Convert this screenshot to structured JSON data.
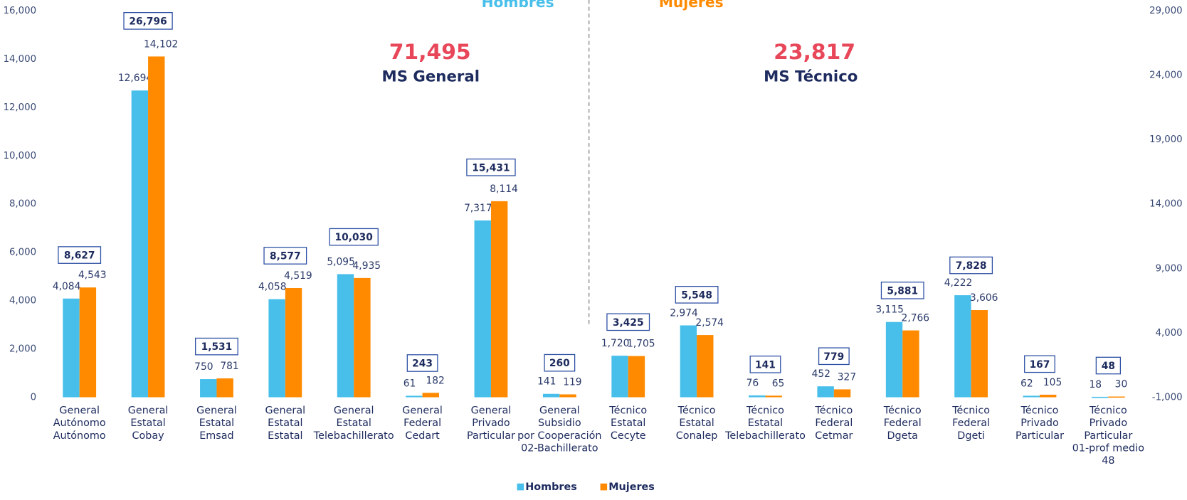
{
  "chart_data": {
    "type": "bar",
    "categories": [
      [
        "General",
        "Autónomo",
        "Autónomo"
      ],
      [
        "General",
        "Estatal",
        "Cobay"
      ],
      [
        "General",
        "Estatal",
        "Emsad"
      ],
      [
        "General",
        "Estatal",
        "Estatal"
      ],
      [
        "General",
        "Estatal",
        "Telebachillerato"
      ],
      [
        "General",
        "Federal",
        "Cedart"
      ],
      [
        "General",
        "Privado",
        "Particular"
      ],
      [
        "General",
        "Subsidio",
        "por Cooperación",
        "02-Bachillerato"
      ],
      [
        "Técnico",
        "Estatal",
        "Cecyte"
      ],
      [
        "Técnico",
        "Estatal",
        "Conalep"
      ],
      [
        "Técnico",
        "Estatal",
        "Telebachillerato"
      ],
      [
        "Técnico",
        "Federal",
        "Cetmar"
      ],
      [
        "Técnico",
        "Federal",
        "Dgeta"
      ],
      [
        "Técnico",
        "Federal",
        "Dgeti"
      ],
      [
        "Técnico",
        "Privado",
        "Particular"
      ],
      [
        "Técnico",
        "Privado",
        "Particular",
        "01-prof medio",
        "48"
      ]
    ],
    "series": [
      {
        "name": "Hombres",
        "color": "#47bfea",
        "values": [
          4084,
          12694,
          750,
          4058,
          5095,
          61,
          7317,
          141,
          1720,
          2974,
          76,
          452,
          3115,
          4222,
          62,
          18
        ],
        "value_labels": [
          "4,084",
          "12,694",
          "750",
          "4,058",
          "5,095",
          "61",
          "7,317",
          "141",
          "1,720",
          "2,974",
          "76",
          "452",
          "3,115",
          "4,222",
          "62",
          "18"
        ]
      },
      {
        "name": "Mujeres",
        "color": "#ff8a00",
        "values": [
          4543,
          14102,
          781,
          4519,
          4935,
          182,
          8114,
          119,
          1705,
          2574,
          65,
          327,
          2766,
          3606,
          105,
          30
        ],
        "value_labels": [
          "4,543",
          "14,102",
          "781",
          "4,519",
          "4,935",
          "182",
          "8,114",
          "119",
          "1,705",
          "2,574",
          "65",
          "327",
          "2,766",
          "3,606",
          "105",
          "30"
        ]
      },
      {
        "axis": "y2",
        "color": "#2c4fa3",
        "values": [
          8627,
          26796,
          1531,
          8577,
          10030,
          243,
          15431,
          260,
          3425,
          5548,
          141,
          779,
          5881,
          7828,
          167,
          48
        ],
        "value_labels": [
          "8,627",
          "26,796",
          "1,531",
          "8,577",
          "10,030",
          "243",
          "15,431",
          "260",
          "3,425",
          "5,548",
          "141",
          "779",
          "5,881",
          "7,828",
          "167",
          "48"
        ]
      }
    ],
    "ylim": [
      0,
      16000
    ],
    "yticks": [
      0,
      {
        "value": 2000,
        "label": "2,000"
      },
      {
        "value": 4000,
        "label": "4,000"
      },
      {
        "value": 6000,
        "label": "6,000"
      },
      {
        "value": 8000,
        "label": "8,000"
      },
      {
        "value": 10000,
        "label": "10,000"
      },
      {
        "value": 12000,
        "label": "12,000"
      },
      {
        "value": 14000,
        "label": "14,000"
      },
      {
        "value": 16000,
        "label": "16,000"
      }
    ],
    "y2lim": [
      -1000,
      29000
    ],
    "y2ticks": [
      {
        "value": -1000,
        "label": "-1,000"
      },
      {
        "value": 4000,
        "label": "4,000"
      },
      {
        "value": 9000,
        "label": "9,000"
      },
      {
        "value": 14000,
        "label": "14,000"
      },
      {
        "value": 19000,
        "label": "19,000"
      },
      {
        "value": 24000,
        "label": "24,000"
      },
      {
        "value": 29000,
        "label": "29,000"
      }
    ],
    "annotations": [
      "Hombres",
      "Mujeres",
      "71,495",
      "MS General",
      "23,817",
      "MS Técnico"
    ],
    "legend": "bottom"
  }
}
